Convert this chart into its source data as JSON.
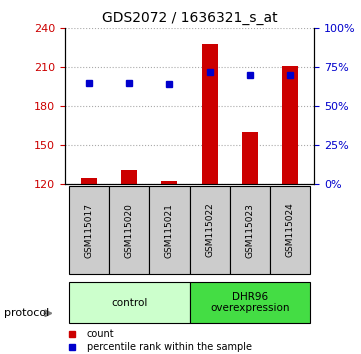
{
  "title": "GDS2072 / 1636321_s_at",
  "samples": [
    "GSM115017",
    "GSM115020",
    "GSM115021",
    "GSM115022",
    "GSM115023",
    "GSM115024"
  ],
  "counts": [
    125,
    131,
    122,
    228,
    160,
    211
  ],
  "percentile_ranks": [
    65,
    65,
    64,
    72,
    70,
    70
  ],
  "ylim_left": [
    120,
    240
  ],
  "ylim_right": [
    0,
    100
  ],
  "yticks_left": [
    120,
    150,
    180,
    210,
    240
  ],
  "yticks_right": [
    0,
    25,
    50,
    75,
    100
  ],
  "bar_color": "#cc0000",
  "dot_color": "#0000cc",
  "bar_bottom": 120,
  "groups": [
    {
      "label": "control",
      "samples": [
        0,
        1,
        2
      ],
      "color": "#ccffcc"
    },
    {
      "label": "DHR96\noverexpression",
      "samples": [
        3,
        4,
        5
      ],
      "color": "#00cc00"
    }
  ],
  "group_header": "protocol",
  "legend_items": [
    {
      "marker": "s",
      "color": "#cc0000",
      "label": "count"
    },
    {
      "marker": "s",
      "color": "#0000cc",
      "label": "percentile rank within the sample"
    }
  ],
  "grid_color": "#aaaaaa",
  "sample_box_color": "#cccccc",
  "fig_width": 3.61,
  "fig_height": 3.54,
  "dpi": 100
}
